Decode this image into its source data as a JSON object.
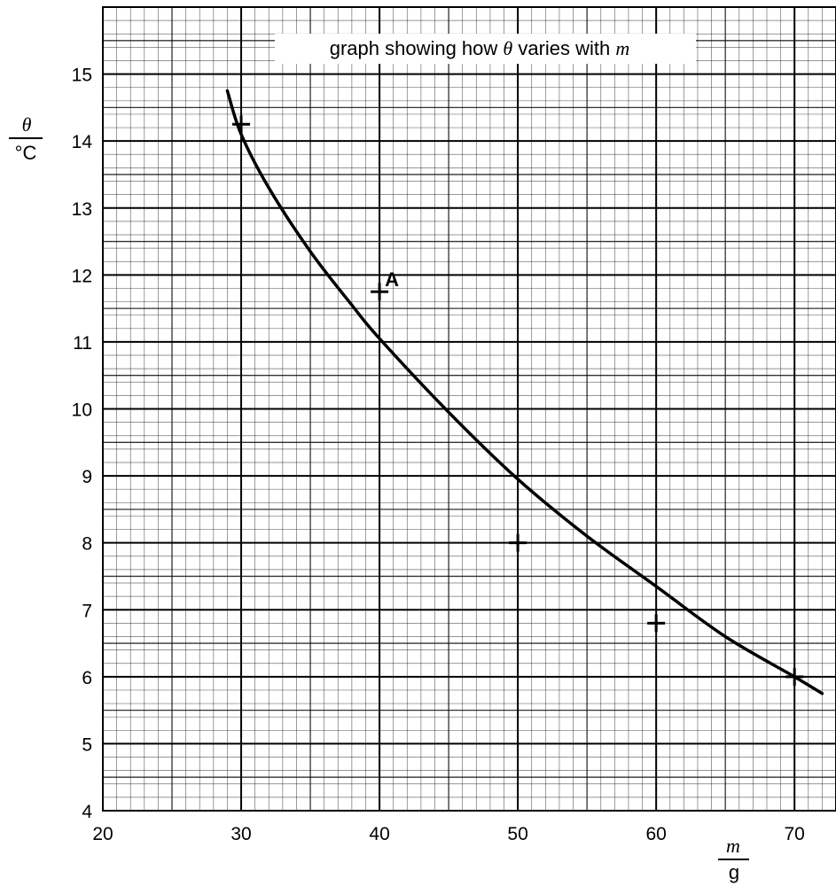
{
  "chart_data": {
    "type": "scatter",
    "title": "graph showing how θ varies with m",
    "title_parts": {
      "prefix": "graph showing how ",
      "var1": "θ",
      "middle": " varies with ",
      "var2": "m"
    },
    "xlabel": {
      "numerator": "m",
      "denominator": "g"
    },
    "ylabel": {
      "numerator": "θ",
      "denominator": "°C"
    },
    "xlim": [
      20,
      73
    ],
    "ylim": [
      4,
      16
    ],
    "x_ticks": [
      20,
      30,
      40,
      50,
      60,
      70
    ],
    "y_ticks": [
      4,
      5,
      6,
      7,
      8,
      9,
      10,
      11,
      12,
      13,
      14,
      15
    ],
    "grid": "fine graph paper (1 major, 5 minor per major division)",
    "series": [
      {
        "kind": "points",
        "marker": "plus",
        "x": [
          30,
          40,
          50,
          60,
          70
        ],
        "y": [
          14.25,
          11.75,
          8.0,
          6.8,
          6.0
        ]
      },
      {
        "kind": "curve",
        "x": [
          29,
          30,
          32,
          35,
          38,
          40,
          45,
          50,
          55,
          60,
          65,
          70,
          72
        ],
        "y": [
          14.75,
          14.1,
          13.3,
          12.35,
          11.55,
          11.05,
          9.95,
          8.95,
          8.1,
          7.35,
          6.6,
          6.0,
          5.75
        ]
      }
    ],
    "annotations": [
      {
        "text": "A",
        "x": 40,
        "y": 11.75
      }
    ]
  }
}
